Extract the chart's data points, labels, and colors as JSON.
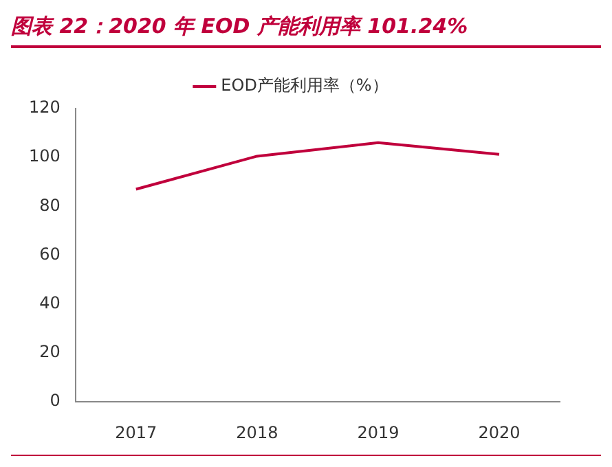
{
  "chart_data": {
    "type": "line",
    "title": "图表 22：2020 年 EOD 产能利用率 101.24%",
    "categories": [
      "2017",
      "2018",
      "2019",
      "2020"
    ],
    "series": [
      {
        "name": "EOD产能利用率（%）",
        "color": "#c0003c",
        "values": [
          87,
          100.5,
          106,
          101.24
        ]
      }
    ],
    "ylim": [
      0,
      120
    ],
    "yticks": [
      0,
      20,
      40,
      60,
      80,
      100,
      120
    ],
    "grid": false,
    "legend": "top",
    "marker": "none",
    "line_style": "solid"
  }
}
